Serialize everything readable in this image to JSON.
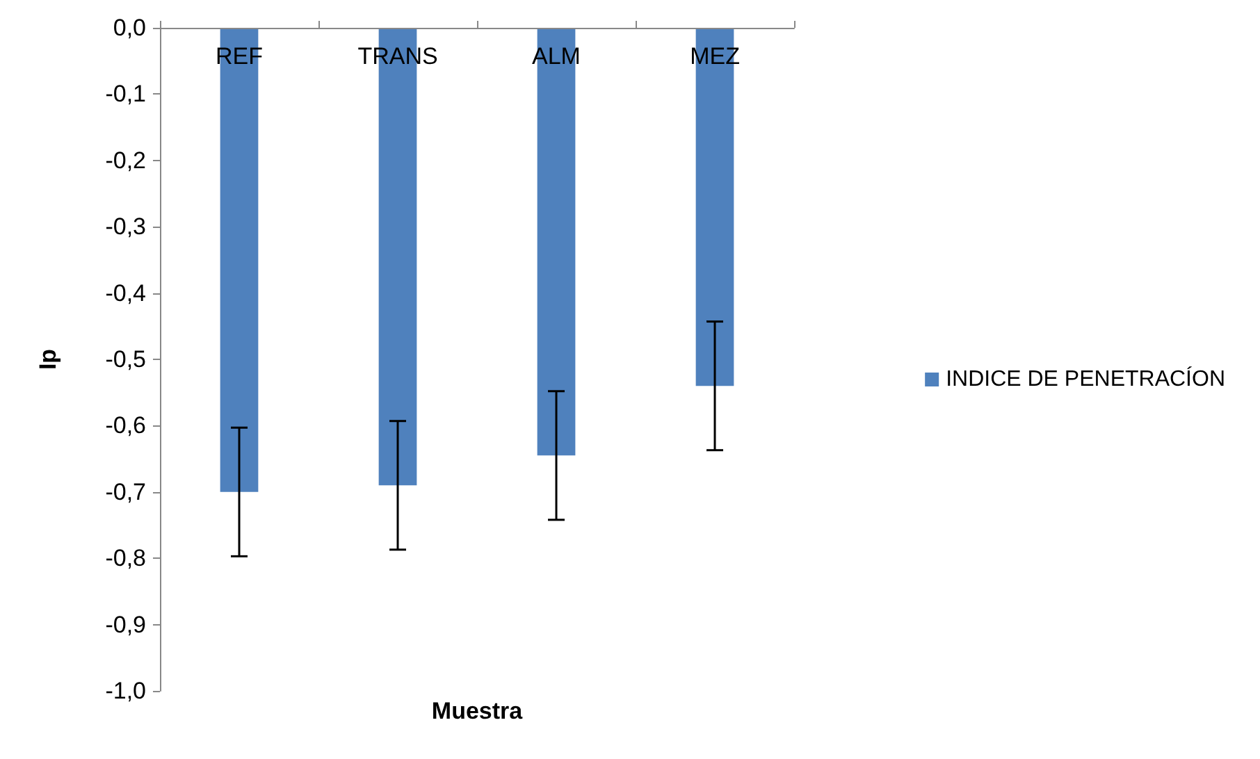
{
  "chart_data": {
    "type": "bar",
    "xlabel": "Muestra",
    "ylabel": "Ip",
    "categories": [
      "REF",
      "TRANS",
      "ALM",
      "MEZ"
    ],
    "series": [
      {
        "name": "INDICE DE PENETRACÍON",
        "color": "#4f81bd",
        "values": [
          -0.7,
          -0.69,
          -0.645,
          -0.54
        ],
        "errors": [
          0.097,
          0.097,
          0.097,
          0.097
        ]
      }
    ],
    "ylim": [
      -1.0,
      0.0
    ],
    "yticks": [
      {
        "value": 0,
        "label": "0,0"
      },
      {
        "value": -0.1,
        "label": "-0,1"
      },
      {
        "value": -0.2,
        "label": "-0,2"
      },
      {
        "value": -0.3,
        "label": "-0,3"
      },
      {
        "value": -0.4,
        "label": "-0,4"
      },
      {
        "value": -0.5,
        "label": "-0,5"
      },
      {
        "value": -0.6,
        "label": "-0,6"
      },
      {
        "value": -0.7,
        "label": "-0,7"
      },
      {
        "value": -0.8,
        "label": "-0,8"
      },
      {
        "value": -0.9,
        "label": "-0,9"
      },
      {
        "value": -1.0,
        "label": "-1,0"
      }
    ],
    "grid": false,
    "legend": "right"
  }
}
